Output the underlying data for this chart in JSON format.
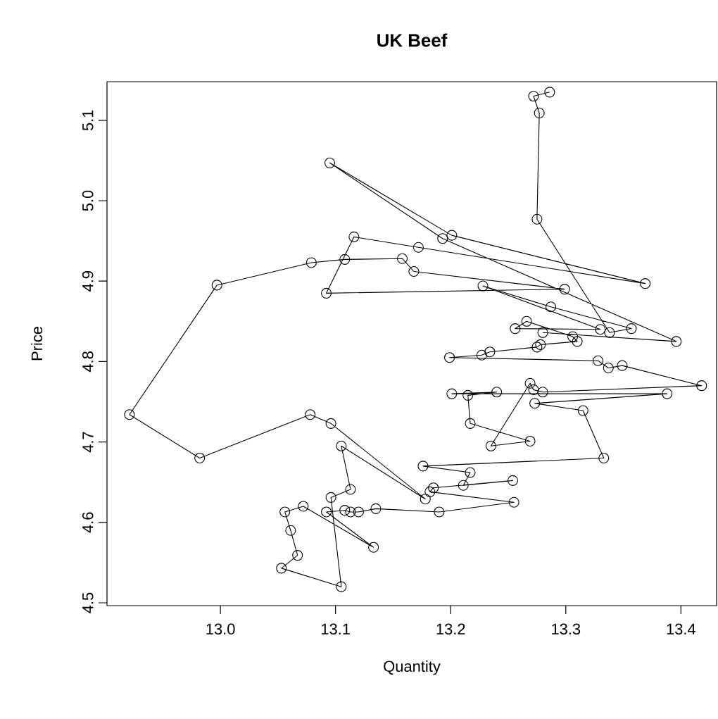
{
  "chart_data": {
    "type": "line",
    "title": "UK Beef",
    "xlabel": "Quantity",
    "ylabel": "Price",
    "color": "#000000",
    "marker": "circle",
    "line_style": "solid",
    "x": [
      13.286,
      13.272,
      13.277,
      13.275,
      13.338,
      13.357,
      13.287,
      13.228,
      13.33,
      13.256,
      13.266,
      13.306,
      13.31,
      13.278,
      13.275,
      13.234,
      13.227,
      13.199,
      13.328,
      13.337,
      13.349,
      13.418,
      13.28,
      13.272,
      13.269,
      13.235,
      13.269,
      13.217,
      13.215,
      13.24,
      13.201,
      13.388,
      13.273,
      13.315,
      13.333,
      13.176,
      13.217,
      13.211,
      13.254,
      13.185,
      13.182,
      13.255,
      13.19,
      13.135,
      13.12,
      13.113,
      13.108,
      13.092,
      13.133,
      13.072,
      13.056,
      13.061,
      13.067,
      13.053,
      13.105,
      13.096,
      13.113,
      13.105,
      13.178,
      13.096,
      13.078,
      12.982,
      12.921,
      12.997,
      13.079,
      13.108,
      13.158,
      13.168,
      13.299,
      13.092,
      13.116,
      13.172,
      13.369,
      13.201,
      13.095,
      13.193,
      13.396,
      13.28
    ],
    "values": [
      5.135,
      5.13,
      5.109,
      4.977,
      4.836,
      4.841,
      4.868,
      4.894,
      4.84,
      4.841,
      4.85,
      4.831,
      4.825,
      4.821,
      4.818,
      4.812,
      4.808,
      4.805,
      4.801,
      4.792,
      4.795,
      4.77,
      4.762,
      4.765,
      4.773,
      4.695,
      4.701,
      4.723,
      4.758,
      4.762,
      4.76,
      4.76,
      4.748,
      4.739,
      4.68,
      4.67,
      4.662,
      4.646,
      4.652,
      4.643,
      4.638,
      4.625,
      4.613,
      4.617,
      4.613,
      4.613,
      4.615,
      4.613,
      4.569,
      4.62,
      4.613,
      4.59,
      4.559,
      4.543,
      4.52,
      4.631,
      4.641,
      4.695,
      4.629,
      4.723,
      4.734,
      4.68,
      4.734,
      4.895,
      4.923,
      4.927,
      4.928,
      4.912,
      4.89,
      4.885,
      4.955,
      4.942,
      4.897,
      4.957,
      5.047,
      4.953,
      4.825,
      4.836
    ],
    "xlim": [
      12.9015,
      13.431
    ],
    "ylim": [
      4.4965,
      5.148
    ],
    "xticks": [
      {
        "value": 13.0,
        "label": "13.0"
      },
      {
        "value": 13.1,
        "label": "13.1"
      },
      {
        "value": 13.2,
        "label": "13.2"
      },
      {
        "value": 13.3,
        "label": "13.3"
      },
      {
        "value": 13.4,
        "label": "13.4"
      }
    ],
    "yticks": [
      {
        "value": 4.5,
        "label": "4.5"
      },
      {
        "value": 4.6,
        "label": "4.6"
      },
      {
        "value": 4.7,
        "label": "4.7"
      },
      {
        "value": 4.8,
        "label": "4.8"
      },
      {
        "value": 4.9,
        "label": "4.9"
      },
      {
        "value": 5.0,
        "label": "5.0"
      },
      {
        "value": 5.1,
        "label": "5.1"
      }
    ]
  }
}
